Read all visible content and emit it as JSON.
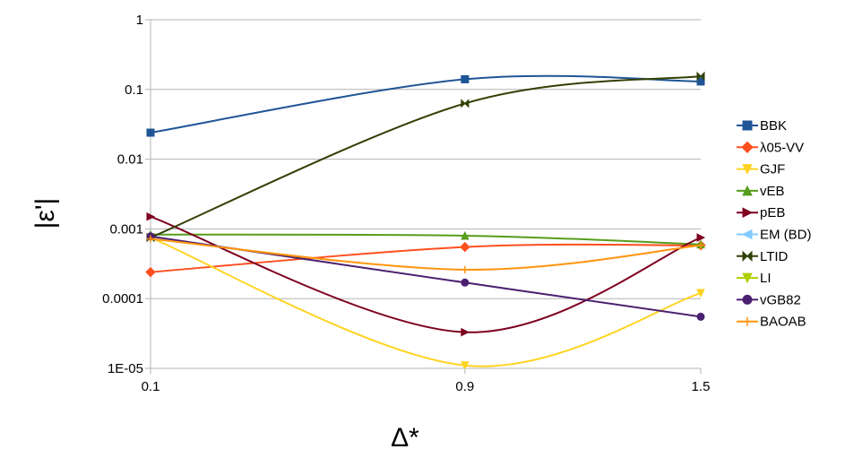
{
  "chart_data": {
    "type": "line",
    "title": "",
    "xlabel": "Δ*",
    "ylabel": "|ε'|",
    "x": [
      0.1,
      0.9,
      1.5
    ],
    "x_tick_labels": [
      "0.1",
      "0.9",
      "1.5"
    ],
    "yscale": "log",
    "ylim": [
      1e-05,
      1
    ],
    "y_ticks": [
      1,
      0.1,
      0.01,
      0.001,
      0.0001,
      1e-05
    ],
    "y_tick_labels": [
      "1",
      "0.1",
      "0.01",
      "0.001",
      "0.0001",
      "1E-05"
    ],
    "grid": "horizontal",
    "legend_position": "right",
    "series": [
      {
        "name": "BBK",
        "color": "#1f5596",
        "marker": "square",
        "values": [
          0.024,
          0.14,
          0.13
        ]
      },
      {
        "name": "λ05-VV",
        "color": "#ff4f1f",
        "marker": "diamond",
        "values": [
          0.00024,
          0.00055,
          0.00058
        ]
      },
      {
        "name": "GJF",
        "color": "#ffd320",
        "marker": "triangle-down",
        "values": [
          0.00075,
          1.1e-05,
          0.00012
        ]
      },
      {
        "name": "vEB",
        "color": "#579d1c",
        "marker": "triangle-up",
        "values": [
          0.00083,
          0.0008,
          0.0006
        ]
      },
      {
        "name": "pEB",
        "color": "#7e0021",
        "marker": "triangle-right",
        "values": [
          0.0015,
          3.3e-05,
          0.00075
        ]
      },
      {
        "name": "EM (BD)",
        "color": "#83caff",
        "marker": "triangle-left",
        "values": [
          null,
          null,
          null
        ]
      },
      {
        "name": "LTID",
        "color": "#314004",
        "marker": "bowtie",
        "values": [
          0.00075,
          0.063,
          0.155
        ]
      },
      {
        "name": "LI",
        "color": "#aecf00",
        "marker": "triangle-down",
        "values": [
          null,
          null,
          null
        ]
      },
      {
        "name": "vGB82",
        "color": "#4b1f6f",
        "marker": "circle",
        "values": [
          0.00078,
          0.00017,
          5.5e-05
        ]
      },
      {
        "name": "BAOAB",
        "color": "#ff950e",
        "marker": "plus",
        "values": [
          0.00072,
          0.00026,
          0.00058
        ]
      }
    ]
  }
}
